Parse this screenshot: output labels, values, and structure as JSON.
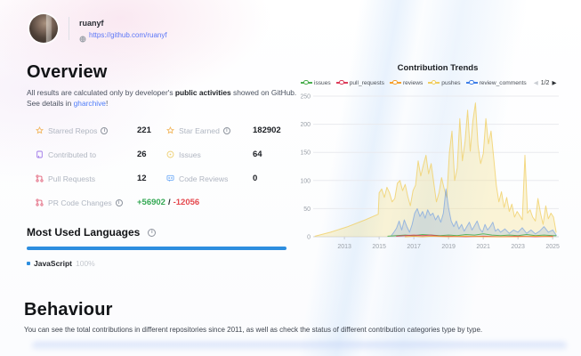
{
  "header": {
    "username": "ruanyf",
    "profile_link": "https://github.com/ruanyf"
  },
  "overview": {
    "title": "Overview",
    "desc_prefix": "All results are calculated only by developer's ",
    "desc_bold": "public activities",
    "desc_mid": " showed on GitHub. See details in ",
    "desc_link": "gharchive",
    "desc_suffix": "!",
    "stats": {
      "starred_repos": {
        "label": "Starred Repos",
        "value": "221"
      },
      "star_earned": {
        "label": "Star Earned",
        "value": "182902"
      },
      "contributed_to": {
        "label": "Contributed to",
        "value": "26"
      },
      "issues": {
        "label": "Issues",
        "value": "64"
      },
      "pull_requests": {
        "label": "Pull Requests",
        "value": "12"
      },
      "code_reviews": {
        "label": "Code Reviews",
        "value": "0"
      },
      "pr_code_changes": {
        "label": "PR Code Changes",
        "additions": "+56902",
        "separator": "/",
        "deletions": "-12056"
      }
    }
  },
  "languages": {
    "title": "Most Used Languages",
    "items": [
      {
        "name": "JavaScript",
        "percent": "100%",
        "color": "#2d8edf"
      }
    ]
  },
  "behaviour": {
    "title": "Behaviour",
    "description": "You can see the total contributions in different repositories since 2011, as well as check the status of different contribution categories type by type."
  },
  "colors": {
    "star": "#f0a73a",
    "repo": "#8957e5",
    "issue": "#eac54f",
    "pull_request": "#dc3c5a",
    "code_review": "#539bf5",
    "additions": "#34a853",
    "deletions": "#e5484d"
  },
  "chart_data": {
    "type": "area",
    "title": "Contribution Trends",
    "pagination": "1/2",
    "legend_position": "top",
    "legend_order": [
      "issues",
      "pull_requests",
      "reviews",
      "pushes",
      "review_comments"
    ],
    "xlim": [
      2011.2,
      2025.35
    ],
    "ylim": [
      0,
      250
    ],
    "x_ticks": [
      2013,
      2015,
      2017,
      2019,
      2021,
      2023,
      2025
    ],
    "y_ticks": [
      0,
      50,
      100,
      150,
      200,
      250
    ],
    "grid": true,
    "series": [
      {
        "name": "pushes",
        "color": "#f0cd5f",
        "line_opacity": 0.75,
        "fill": "rgba(246,222,122,0.30)",
        "x": [
          2011.3,
          2012.2,
          2013.2,
          2014.2,
          2014.95,
          2015.0,
          2015.15,
          2015.3,
          2015.45,
          2015.6,
          2015.75,
          2015.9,
          2016.05,
          2016.2,
          2016.35,
          2016.5,
          2016.65,
          2016.8,
          2016.95,
          2017.1,
          2017.25,
          2017.4,
          2017.55,
          2017.7,
          2017.85,
          2018.0,
          2018.15,
          2018.3,
          2018.45,
          2018.6,
          2018.75,
          2018.9,
          2019.05,
          2019.2,
          2019.35,
          2019.5,
          2019.65,
          2019.8,
          2019.95,
          2020.1,
          2020.25,
          2020.4,
          2020.55,
          2020.7,
          2020.85,
          2021.0,
          2021.15,
          2021.3,
          2021.45,
          2021.6,
          2021.75,
          2021.9,
          2022.05,
          2022.2,
          2022.35,
          2022.5,
          2022.65,
          2022.8,
          2022.95,
          2023.1,
          2023.25,
          2023.4,
          2023.55,
          2023.7,
          2023.85,
          2024.0,
          2024.15,
          2024.3,
          2024.45,
          2024.6,
          2024.75,
          2024.9,
          2025.05,
          2025.2
        ],
        "values": [
          1,
          8,
          18,
          30,
          40,
          78,
          85,
          70,
          88,
          78,
          62,
          68,
          95,
          100,
          82,
          93,
          72,
          55,
          82,
          92,
          135,
          108,
          128,
          145,
          112,
          130,
          95,
          62,
          78,
          105,
          85,
          70,
          150,
          188,
          100,
          122,
          210,
          135,
          170,
          225,
          152,
          205,
          238,
          162,
          130,
          148,
          210,
          165,
          188,
          140,
          92,
          62,
          80,
          52,
          70,
          45,
          58,
          35,
          45,
          38,
          30,
          145,
          42,
          48,
          35,
          28,
          68,
          42,
          22,
          55,
          32,
          42,
          35,
          8
        ]
      },
      {
        "name": "review_comments",
        "color": "#3f7fe8",
        "line_opacity": 0.45,
        "fill": "rgba(63,127,232,0.16)",
        "x": [
          2015.7,
          2015.85,
          2016.0,
          2016.15,
          2016.3,
          2016.45,
          2016.6,
          2016.75,
          2016.9,
          2017.05,
          2017.2,
          2017.35,
          2017.5,
          2017.65,
          2017.8,
          2017.95,
          2018.1,
          2018.25,
          2018.4,
          2018.55,
          2018.7,
          2018.85,
          2019.0,
          2019.15,
          2019.3,
          2019.45,
          2019.6,
          2019.75,
          2019.9,
          2020.05,
          2020.2,
          2020.35,
          2020.5,
          2020.65,
          2020.8,
          2020.95,
          2021.1,
          2021.25,
          2021.4,
          2021.55,
          2021.7,
          2021.85,
          2022.0,
          2022.25,
          2022.5,
          2022.75,
          2023.0,
          2023.25,
          2023.5,
          2023.75,
          2024.0,
          2024.25,
          2024.5,
          2024.75,
          2025.0,
          2025.2
        ],
        "values": [
          2,
          8,
          15,
          28,
          12,
          30,
          18,
          8,
          22,
          42,
          50,
          36,
          45,
          33,
          48,
          38,
          42,
          30,
          38,
          26,
          42,
          85,
          52,
          28,
          18,
          28,
          14,
          22,
          10,
          18,
          26,
          12,
          20,
          28,
          14,
          8,
          22,
          12,
          18,
          26,
          10,
          14,
          8,
          14,
          6,
          12,
          8,
          16,
          6,
          12,
          5,
          10,
          18,
          8,
          12,
          3
        ]
      },
      {
        "name": "issues",
        "color": "#4caf50",
        "line_opacity": 0.9,
        "x": [
          2015.5,
          2016.0,
          2016.5,
          2017.0,
          2017.5,
          2018.0,
          2018.5,
          2019.0,
          2019.5,
          2020.0,
          2020.5,
          2021.0,
          2021.5,
          2022.0,
          2022.5,
          2023.0,
          2023.5,
          2024.0,
          2024.5,
          2025.0,
          2025.2
        ],
        "values": [
          1,
          2,
          3,
          2,
          4,
          3,
          2,
          3,
          2,
          4,
          3,
          5,
          3,
          2,
          3,
          2,
          4,
          2,
          3,
          2,
          2
        ]
      },
      {
        "name": "pull_requests",
        "color": "#dc3c5a",
        "line_opacity": 0.85,
        "x": [
          2016.0,
          2016.5,
          2017.0,
          2017.5,
          2018.0,
          2018.5,
          2019.0,
          2020.0,
          2021.0,
          2022.0,
          2023.0,
          2024.0,
          2025.0
        ],
        "values": [
          1,
          2,
          3,
          2,
          3,
          1,
          1,
          0,
          1,
          0,
          1,
          0,
          1
        ]
      },
      {
        "name": "reviews",
        "color": "#f6a02d",
        "line_opacity": 0.85,
        "x": [
          2016.5,
          2017.0,
          2017.5,
          2018.0,
          2019.0,
          2020.0,
          2021.0,
          2022.0,
          2023.0,
          2024.0,
          2025.0
        ],
        "values": [
          0,
          1,
          0,
          1,
          0,
          1,
          0,
          0,
          0,
          1,
          0
        ]
      }
    ]
  }
}
